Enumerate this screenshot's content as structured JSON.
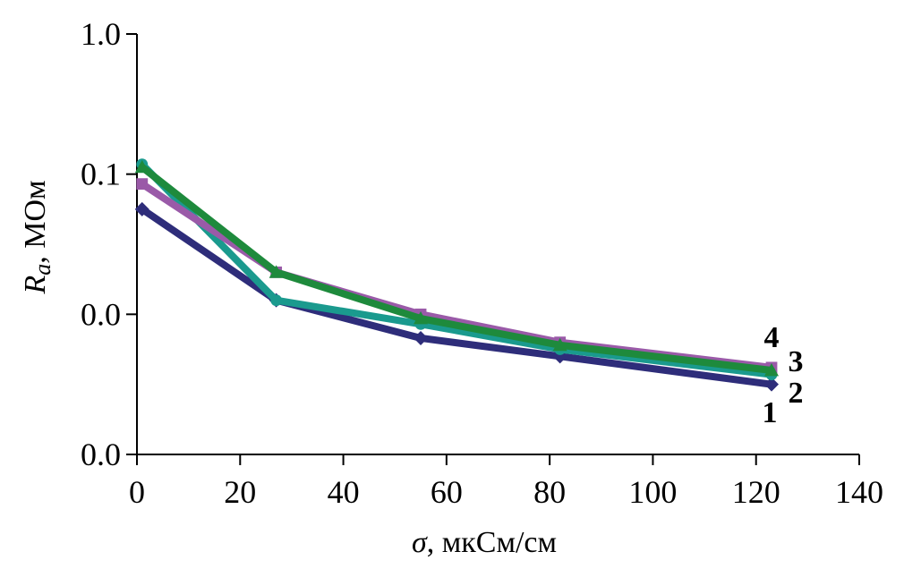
{
  "chart_data": {
    "type": "line",
    "title": "",
    "xlabel_symbol": "σ",
    "xlabel_unit": ", мкСм/см",
    "ylabel_symbol": "R",
    "ylabel_subscript": "a",
    "ylabel_unit": ", МОм",
    "xlim": [
      0,
      140
    ],
    "x_ticks": [
      0,
      20,
      40,
      60,
      80,
      100,
      120,
      140
    ],
    "x_tick_labels": [
      "0",
      "20",
      "40",
      "60",
      "80",
      "100",
      "120",
      "140"
    ],
    "y_ticks": [
      0,
      1,
      2,
      3
    ],
    "y_tick_labels": [
      "0.0",
      "0.0",
      "0.1",
      "1.0"
    ],
    "ylim": [
      0,
      3
    ],
    "grid": false,
    "legend": "none",
    "x": [
      1,
      27,
      55,
      82,
      123
    ],
    "series": [
      {
        "label": "1",
        "color": "#2E2D7A",
        "marker": "diamond",
        "values": [
          1.75,
          1.1,
          0.83,
          0.7,
          0.5
        ]
      },
      {
        "label": "2",
        "color": "#1A9A8E",
        "marker": "circle",
        "values": [
          2.07,
          1.1,
          0.93,
          0.75,
          0.57
        ]
      },
      {
        "label": "3",
        "color": "#1E8A3C",
        "marker": "triangle",
        "values": [
          2.05,
          1.3,
          0.97,
          0.78,
          0.6
        ]
      },
      {
        "label": "4",
        "color": "#9A5AA8",
        "marker": "square",
        "values": [
          1.93,
          1.3,
          1.0,
          0.8,
          0.62
        ]
      }
    ]
  }
}
